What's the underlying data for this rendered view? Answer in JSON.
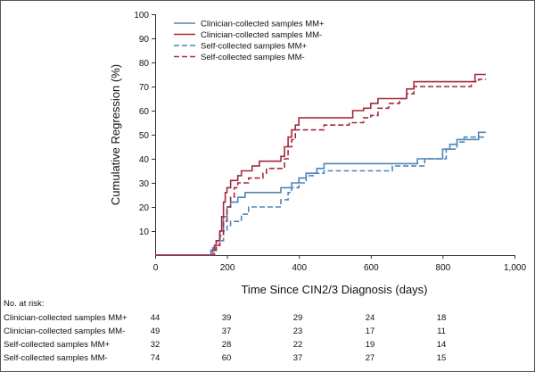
{
  "chart_data": {
    "type": "line",
    "subtype": "step",
    "title": "",
    "xlabel": "Time Since CIN2/3 Diagnosis (days)",
    "ylabel": "Cumulative Regression (%)",
    "xlim": [
      0,
      1000
    ],
    "ylim": [
      0,
      100
    ],
    "xticks": [
      0,
      200,
      400,
      600,
      800,
      1000
    ],
    "xtick_labels": [
      "0",
      "200",
      "400",
      "600",
      "800",
      "1,000"
    ],
    "yticks": [
      10,
      20,
      30,
      40,
      50,
      60,
      70,
      80,
      90,
      100
    ],
    "ytick_labels": [
      "10",
      "20",
      "30",
      "40",
      "50",
      "60",
      "70",
      "80",
      "90",
      "100"
    ],
    "legend_position": "top-center",
    "series": [
      {
        "name": "Clinician-collected samples MM+",
        "color": "#4f86b8",
        "dash": "solid",
        "points": [
          [
            0,
            0
          ],
          [
            150,
            0
          ],
          [
            155,
            2
          ],
          [
            160,
            3
          ],
          [
            165,
            4
          ],
          [
            170,
            6
          ],
          [
            180,
            10
          ],
          [
            190,
            16
          ],
          [
            200,
            20
          ],
          [
            210,
            22
          ],
          [
            230,
            24
          ],
          [
            250,
            26
          ],
          [
            330,
            26
          ],
          [
            350,
            28
          ],
          [
            380,
            30
          ],
          [
            400,
            32
          ],
          [
            420,
            34
          ],
          [
            450,
            36
          ],
          [
            470,
            38
          ],
          [
            700,
            38
          ],
          [
            730,
            40
          ],
          [
            790,
            40
          ],
          [
            800,
            44
          ],
          [
            820,
            46
          ],
          [
            840,
            48
          ],
          [
            890,
            48
          ],
          [
            900,
            51
          ],
          [
            920,
            51
          ]
        ]
      },
      {
        "name": "Clinician-collected samples MM-",
        "color": "#a32a3c",
        "dash": "solid",
        "points": [
          [
            0,
            0
          ],
          [
            150,
            0
          ],
          [
            160,
            2
          ],
          [
            165,
            4
          ],
          [
            170,
            6
          ],
          [
            180,
            10
          ],
          [
            185,
            16
          ],
          [
            190,
            22
          ],
          [
            195,
            26
          ],
          [
            200,
            28
          ],
          [
            210,
            31
          ],
          [
            230,
            33
          ],
          [
            240,
            35
          ],
          [
            270,
            37
          ],
          [
            290,
            39
          ],
          [
            340,
            39
          ],
          [
            350,
            41
          ],
          [
            360,
            45
          ],
          [
            370,
            49
          ],
          [
            380,
            52
          ],
          [
            390,
            54
          ],
          [
            400,
            57
          ],
          [
            450,
            57
          ],
          [
            500,
            57
          ],
          [
            550,
            60
          ],
          [
            580,
            61
          ],
          [
            600,
            63
          ],
          [
            620,
            65
          ],
          [
            680,
            65
          ],
          [
            700,
            69
          ],
          [
            720,
            72
          ],
          [
            880,
            72
          ],
          [
            890,
            75
          ],
          [
            920,
            75
          ]
        ]
      },
      {
        "name": "Self-collected samples MM+",
        "color": "#4f86b8",
        "dash": "dashed",
        "points": [
          [
            0,
            0
          ],
          [
            155,
            0
          ],
          [
            160,
            2
          ],
          [
            170,
            4
          ],
          [
            180,
            6
          ],
          [
            190,
            10
          ],
          [
            200,
            12
          ],
          [
            210,
            14
          ],
          [
            240,
            17
          ],
          [
            260,
            20
          ],
          [
            330,
            20
          ],
          [
            350,
            23
          ],
          [
            370,
            26
          ],
          [
            380,
            28
          ],
          [
            400,
            30
          ],
          [
            420,
            33
          ],
          [
            440,
            34
          ],
          [
            470,
            35
          ],
          [
            640,
            35
          ],
          [
            660,
            37
          ],
          [
            730,
            37
          ],
          [
            750,
            40
          ],
          [
            800,
            40
          ],
          [
            810,
            44
          ],
          [
            840,
            47
          ],
          [
            860,
            49
          ],
          [
            920,
            49
          ]
        ]
      },
      {
        "name": "Self-collected samples MM-",
        "color": "#a32a3c",
        "dash": "dashed",
        "points": [
          [
            0,
            0
          ],
          [
            160,
            0
          ],
          [
            165,
            2
          ],
          [
            170,
            4
          ],
          [
            180,
            8
          ],
          [
            190,
            14
          ],
          [
            200,
            20
          ],
          [
            210,
            24
          ],
          [
            220,
            28
          ],
          [
            230,
            30
          ],
          [
            260,
            32
          ],
          [
            300,
            34
          ],
          [
            310,
            36
          ],
          [
            350,
            36
          ],
          [
            360,
            40
          ],
          [
            370,
            45
          ],
          [
            380,
            48
          ],
          [
            390,
            52
          ],
          [
            450,
            52
          ],
          [
            470,
            54
          ],
          [
            540,
            55
          ],
          [
            580,
            57
          ],
          [
            600,
            58
          ],
          [
            620,
            61
          ],
          [
            650,
            63
          ],
          [
            680,
            65
          ],
          [
            700,
            67
          ],
          [
            720,
            70
          ],
          [
            870,
            70
          ],
          [
            880,
            72
          ],
          [
            900,
            73
          ],
          [
            920,
            73
          ]
        ]
      }
    ],
    "at_risk": {
      "header": "No. at risk:",
      "rows": [
        {
          "label": "Clinician-collected samples MM+",
          "values": [
            "44",
            "39",
            "29",
            "24",
            "18"
          ]
        },
        {
          "label": "Clinician-collected samples MM-",
          "values": [
            "49",
            "37",
            "23",
            "17",
            "11"
          ]
        },
        {
          "label": "Self-collected samples MM+",
          "values": [
            "32",
            "28",
            "22",
            "19",
            "14"
          ]
        },
        {
          "label": "Self-collected samples MM-",
          "values": [
            "74",
            "60",
            "37",
            "27",
            "15"
          ]
        }
      ]
    }
  }
}
